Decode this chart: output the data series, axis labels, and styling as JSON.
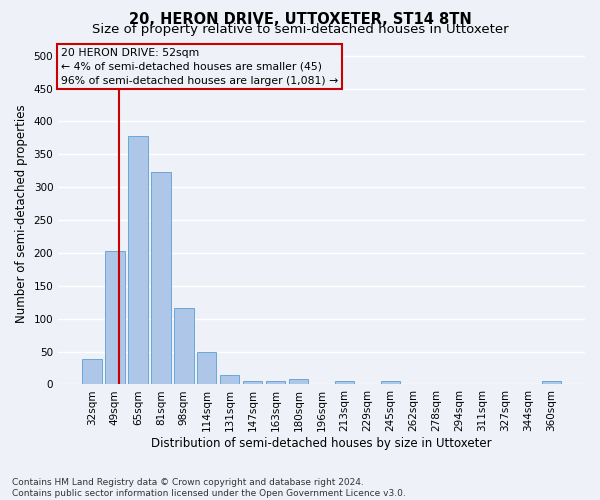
{
  "title": "20, HERON DRIVE, UTTOXETER, ST14 8TN",
  "subtitle": "Size of property relative to semi-detached houses in Uttoxeter",
  "xlabel": "Distribution of semi-detached houses by size in Uttoxeter",
  "ylabel": "Number of semi-detached properties",
  "categories": [
    "32sqm",
    "49sqm",
    "65sqm",
    "81sqm",
    "98sqm",
    "114sqm",
    "131sqm",
    "147sqm",
    "163sqm",
    "180sqm",
    "196sqm",
    "213sqm",
    "229sqm",
    "245sqm",
    "262sqm",
    "278sqm",
    "294sqm",
    "311sqm",
    "327sqm",
    "344sqm",
    "360sqm"
  ],
  "values": [
    38,
    203,
    378,
    323,
    117,
    50,
    15,
    6,
    6,
    8,
    0,
    5,
    0,
    5,
    0,
    0,
    0,
    0,
    0,
    0,
    5
  ],
  "bar_color": "#aec6e8",
  "bar_edge_color": "#5a9fd4",
  "vline_color": "#cc0000",
  "annotation_box_edge_color": "#cc0000",
  "ylim": [
    0,
    520
  ],
  "yticks": [
    0,
    50,
    100,
    150,
    200,
    250,
    300,
    350,
    400,
    450,
    500
  ],
  "property_label": "20 HERON DRIVE: 52sqm",
  "pct_smaller": 4,
  "pct_larger": 96,
  "n_smaller": 45,
  "n_larger": 1081,
  "footer_line1": "Contains HM Land Registry data © Crown copyright and database right 2024.",
  "footer_line2": "Contains public sector information licensed under the Open Government Licence v3.0.",
  "bg_color": "#eef2f8",
  "grid_color": "#ffffff",
  "title_fontsize": 10.5,
  "subtitle_fontsize": 9.5,
  "axis_label_fontsize": 8.5,
  "tick_fontsize": 7.5,
  "annotation_fontsize": 7.8,
  "footer_fontsize": 6.5,
  "vline_x": 1.18
}
